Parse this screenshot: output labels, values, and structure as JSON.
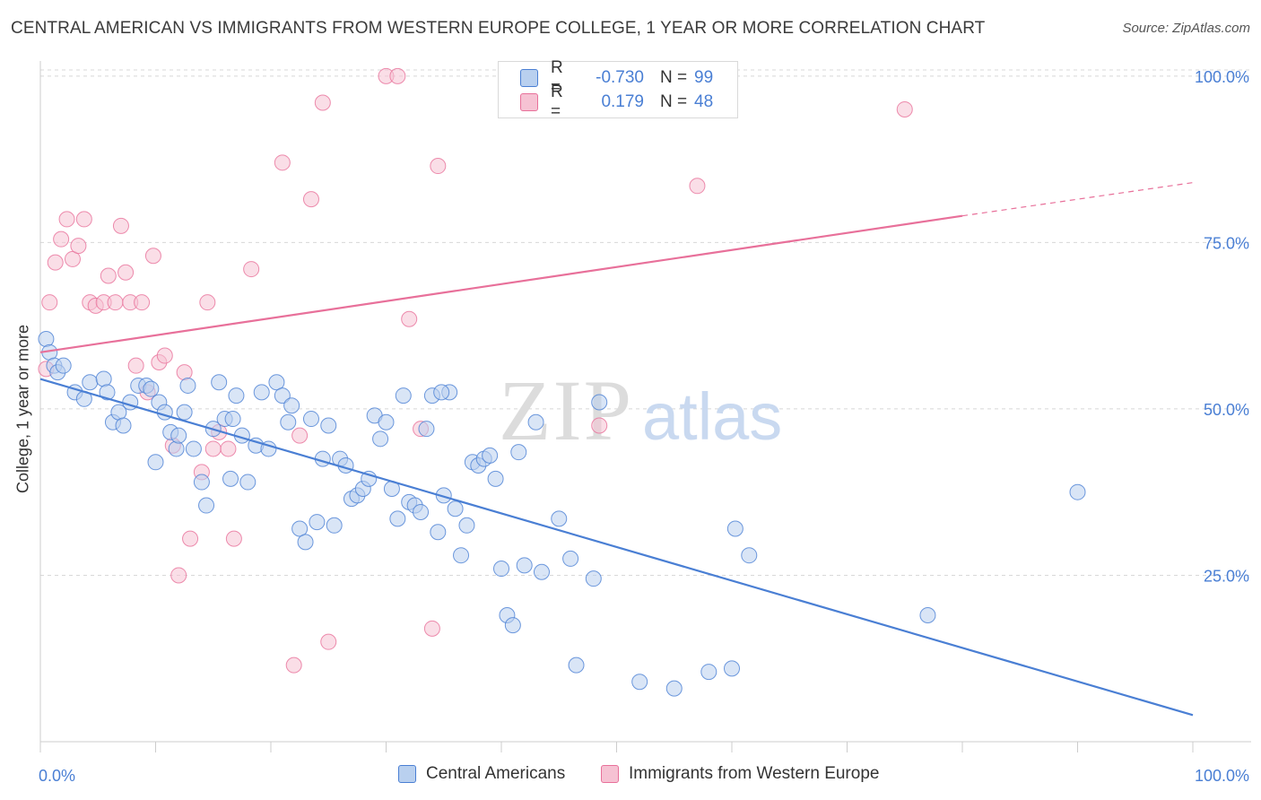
{
  "title": "CENTRAL AMERICAN VS IMMIGRANTS FROM WESTERN EUROPE COLLEGE, 1 YEAR OR MORE CORRELATION CHART",
  "source": "Source: ZipAtlas.com",
  "watermark": {
    "zip": "ZIP",
    "atlas": "atlas"
  },
  "colors": {
    "blue": "#4a7fd4",
    "blue_fill": "#b9d0ef",
    "pink": "#e8709a",
    "pink_fill": "#f6c2d3",
    "grid": "#d8d8d8",
    "tick_label": "#4a7fd4"
  },
  "legend": {
    "rows": [
      {
        "r_label": "R =",
        "r_value": "-0.730",
        "n_label": "N =",
        "n_value": "99",
        "color": "blue"
      },
      {
        "r_label": "R =",
        "r_value": "0.179",
        "n_label": "N =",
        "n_value": "48",
        "color": "pink"
      }
    ]
  },
  "bottom_legend": {
    "series1": "Central Americans",
    "series2": "Immigrants from Western Europe"
  },
  "chart_data": {
    "type": "scatter",
    "title": "CENTRAL AMERICAN VS IMMIGRANTS FROM WESTERN EUROPE COLLEGE, 1 YEAR OR MORE CORRELATION CHART",
    "xlabel": "",
    "ylabel": "College, 1 year or more",
    "xlim": [
      0,
      100
    ],
    "ylim": [
      0,
      102
    ],
    "x_tick_labels": [
      "0.0%",
      "100.0%"
    ],
    "y_ticks": [
      25,
      50,
      75,
      100
    ],
    "y_tick_labels": [
      "25.0%",
      "50.0%",
      "75.0%",
      "100.0%"
    ],
    "grid": true,
    "legend_position": "top-center",
    "series": [
      {
        "name": "Central Americans",
        "color": "blue",
        "trend": {
          "x": [
            0,
            100
          ],
          "y": [
            54.5,
            4
          ]
        },
        "points": [
          [
            0.5,
            60.5
          ],
          [
            0.8,
            58.5
          ],
          [
            1.2,
            56.5
          ],
          [
            1.5,
            55.5
          ],
          [
            2.0,
            56.5
          ],
          [
            3.0,
            52.5
          ],
          [
            3.8,
            51.5
          ],
          [
            4.3,
            54.0
          ],
          [
            5.5,
            54.5
          ],
          [
            5.8,
            52.5
          ],
          [
            6.3,
            48.0
          ],
          [
            6.8,
            49.5
          ],
          [
            7.2,
            47.5
          ],
          [
            7.8,
            51.0
          ],
          [
            8.5,
            53.5
          ],
          [
            9.2,
            53.5
          ],
          [
            9.6,
            53.0
          ],
          [
            10.0,
            42.0
          ],
          [
            10.3,
            51.0
          ],
          [
            10.8,
            49.5
          ],
          [
            11.3,
            46.5
          ],
          [
            11.8,
            44.0
          ],
          [
            12.0,
            46.0
          ],
          [
            12.5,
            49.5
          ],
          [
            12.8,
            53.5
          ],
          [
            13.3,
            44.0
          ],
          [
            14.0,
            39.0
          ],
          [
            14.4,
            35.5
          ],
          [
            15.0,
            47.0
          ],
          [
            15.5,
            54.0
          ],
          [
            16.0,
            48.5
          ],
          [
            16.5,
            39.5
          ],
          [
            16.7,
            48.5
          ],
          [
            17.5,
            46.0
          ],
          [
            18.0,
            39.0
          ],
          [
            18.7,
            44.5
          ],
          [
            19.2,
            52.5
          ],
          [
            19.8,
            44.0
          ],
          [
            20.5,
            54.0
          ],
          [
            21.0,
            52.0
          ],
          [
            21.5,
            48.0
          ],
          [
            21.8,
            50.5
          ],
          [
            22.5,
            32.0
          ],
          [
            23.0,
            30.0
          ],
          [
            23.5,
            48.5
          ],
          [
            24.0,
            33.0
          ],
          [
            24.5,
            42.5
          ],
          [
            25.0,
            47.5
          ],
          [
            25.5,
            32.5
          ],
          [
            26.0,
            42.5
          ],
          [
            26.5,
            41.5
          ],
          [
            27.0,
            36.5
          ],
          [
            27.5,
            37.0
          ],
          [
            28.0,
            38.0
          ],
          [
            28.5,
            39.5
          ],
          [
            29.0,
            49.0
          ],
          [
            29.5,
            45.5
          ],
          [
            30.0,
            48.0
          ],
          [
            30.5,
            38.0
          ],
          [
            31.0,
            33.5
          ],
          [
            31.5,
            52.0
          ],
          [
            32.0,
            36.0
          ],
          [
            32.5,
            35.5
          ],
          [
            33.0,
            34.5
          ],
          [
            33.5,
            47.0
          ],
          [
            34.0,
            52.0
          ],
          [
            34.5,
            31.5
          ],
          [
            35.0,
            37.0
          ],
          [
            35.5,
            52.5
          ],
          [
            36.0,
            35.0
          ],
          [
            36.5,
            28.0
          ],
          [
            37.0,
            32.5
          ],
          [
            37.5,
            42.0
          ],
          [
            38.0,
            41.5
          ],
          [
            38.5,
            42.5
          ],
          [
            39.0,
            43.0
          ],
          [
            39.5,
            39.5
          ],
          [
            40.0,
            26.0
          ],
          [
            40.5,
            19.0
          ],
          [
            41.0,
            17.5
          ],
          [
            41.5,
            43.5
          ],
          [
            42.0,
            26.5
          ],
          [
            43.0,
            48.0
          ],
          [
            43.5,
            25.5
          ],
          [
            45.0,
            33.5
          ],
          [
            46.0,
            27.5
          ],
          [
            46.5,
            11.5
          ],
          [
            48.0,
            24.5
          ],
          [
            48.5,
            51.0
          ],
          [
            52.0,
            9.0
          ],
          [
            55.0,
            8.0
          ],
          [
            58.0,
            10.5
          ],
          [
            60.0,
            11.0
          ],
          [
            60.3,
            32.0
          ],
          [
            61.5,
            28.0
          ],
          [
            77.0,
            19.0
          ],
          [
            90.0,
            37.5
          ],
          [
            34.8,
            52.5
          ],
          [
            17.0,
            52.0
          ]
        ]
      },
      {
        "name": "Immigrants from Western Europe",
        "color": "pink",
        "trend": {
          "x": [
            0,
            80,
            100
          ],
          "y": [
            58.5,
            79,
            84
          ]
        },
        "points": [
          [
            0.5,
            56.0
          ],
          [
            0.8,
            66.0
          ],
          [
            1.3,
            72.0
          ],
          [
            1.8,
            75.5
          ],
          [
            2.3,
            78.5
          ],
          [
            2.8,
            72.5
          ],
          [
            3.3,
            74.5
          ],
          [
            3.8,
            78.5
          ],
          [
            4.3,
            66.0
          ],
          [
            4.8,
            65.5
          ],
          [
            5.5,
            66.0
          ],
          [
            5.9,
            70.0
          ],
          [
            6.5,
            66.0
          ],
          [
            7.0,
            77.5
          ],
          [
            7.4,
            70.5
          ],
          [
            7.8,
            66.0
          ],
          [
            8.3,
            56.5
          ],
          [
            8.8,
            66.0
          ],
          [
            9.3,
            52.5
          ],
          [
            9.8,
            73.0
          ],
          [
            10.3,
            57.0
          ],
          [
            10.8,
            58.0
          ],
          [
            11.5,
            44.5
          ],
          [
            12.0,
            25.0
          ],
          [
            12.5,
            55.5
          ],
          [
            13.0,
            30.5
          ],
          [
            14.0,
            40.5
          ],
          [
            14.5,
            66.0
          ],
          [
            15.0,
            44.0
          ],
          [
            15.5,
            46.5
          ],
          [
            16.3,
            44.0
          ],
          [
            16.8,
            30.5
          ],
          [
            18.3,
            71.0
          ],
          [
            21.0,
            87.0
          ],
          [
            22.0,
            11.5
          ],
          [
            22.5,
            46.0
          ],
          [
            23.5,
            81.5
          ],
          [
            24.5,
            96.0
          ],
          [
            25.0,
            15.0
          ],
          [
            30.0,
            100.0
          ],
          [
            31.0,
            100.0
          ],
          [
            32.0,
            63.5
          ],
          [
            33.0,
            47.0
          ],
          [
            34.5,
            86.5
          ],
          [
            34.0,
            17.0
          ],
          [
            48.5,
            47.5
          ],
          [
            57.0,
            83.5
          ],
          [
            75.0,
            95.0
          ]
        ]
      }
    ]
  }
}
